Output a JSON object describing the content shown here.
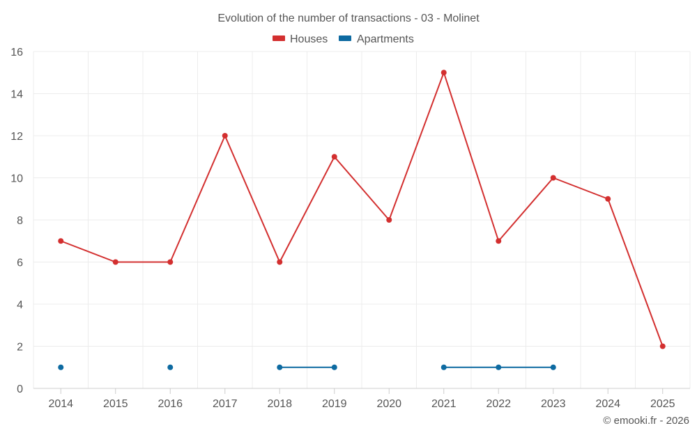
{
  "chart_data": {
    "type": "line",
    "title": "Evolution of the number of transactions - 03 - Molinet",
    "categories": [
      "2014",
      "2015",
      "2016",
      "2017",
      "2018",
      "2019",
      "2020",
      "2021",
      "2022",
      "2023",
      "2024",
      "2025"
    ],
    "series": [
      {
        "name": "Houses",
        "color": "#d32f2f",
        "values": [
          7,
          6,
          6,
          12,
          6,
          11,
          8,
          15,
          7,
          10,
          9,
          2
        ]
      },
      {
        "name": "Apartments",
        "color": "#0d6aa1",
        "values": [
          1,
          null,
          1,
          null,
          1,
          1,
          null,
          1,
          1,
          1,
          null,
          null
        ]
      }
    ],
    "ylim": [
      0,
      16
    ],
    "yticks": [
      0,
      2,
      4,
      6,
      8,
      10,
      12,
      14,
      16
    ],
    "xlabel": "",
    "ylabel": "",
    "grid": true,
    "legend_position": "top-center"
  },
  "credit": "© emooki.fr - 2026"
}
